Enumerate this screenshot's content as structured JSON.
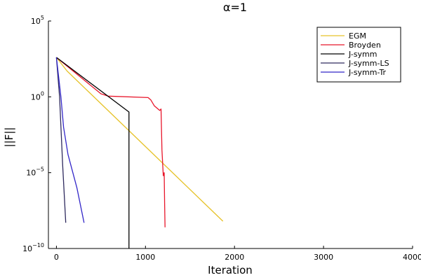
{
  "chart_data": {
    "type": "line",
    "title": "α=1",
    "xlabel": "Iteration",
    "ylabel": "||F||",
    "xlim": [
      -90,
      4000
    ],
    "ylim_log10": [
      -10,
      5
    ],
    "log_y": true,
    "grid": false,
    "legend_position": "top-right",
    "x_ticks": [
      {
        "value": 0,
        "label": "0"
      },
      {
        "value": 1000,
        "label": "1000"
      },
      {
        "value": 2000,
        "label": "2000"
      },
      {
        "value": 3000,
        "label": "3000"
      },
      {
        "value": 4000,
        "label": "4000"
      }
    ],
    "y_ticks": [
      {
        "value": 5,
        "base": "10",
        "exp": "5"
      },
      {
        "value": 0,
        "base": "10",
        "exp": "0"
      },
      {
        "value": -5,
        "base": "10",
        "exp": "−5"
      },
      {
        "value": -10,
        "base": "10",
        "exp": "−10"
      }
    ],
    "series": [
      {
        "name": "EGM",
        "color": "#e6c229",
        "log10_y": true,
        "x": [
          0,
          120,
          1870
        ],
        "y": [
          2.6,
          1.7,
          -8.2
        ]
      },
      {
        "name": "Broyden",
        "color": "#e8162b",
        "log10_y": true,
        "x": [
          0,
          500,
          580,
          1030,
          1060,
          1100,
          1160,
          1175,
          1185,
          1200,
          1210,
          1215,
          1220
        ],
        "y": [
          2.6,
          0.2,
          0.05,
          -0.05,
          -0.2,
          -0.6,
          -0.9,
          -0.8,
          -3.5,
          -5.2,
          -5.0,
          -7.0,
          -8.6
        ]
      },
      {
        "name": "J-symm",
        "color": "#000000",
        "log10_y": true,
        "x": [
          0,
          815,
          815
        ],
        "y": [
          2.6,
          -1.0,
          -10.0
        ]
      },
      {
        "name": "J-symm-LS",
        "color": "#2e2a5e",
        "log10_y": true,
        "x": [
          0,
          35,
          70,
          105
        ],
        "y": [
          2.6,
          0,
          -4.5,
          -8.3
        ]
      },
      {
        "name": "J-symm-Tr",
        "color": "#3226c8",
        "log10_y": true,
        "x": [
          0,
          50,
          80,
          130,
          230,
          310
        ],
        "y": [
          2.6,
          0,
          -2.0,
          -3.8,
          -6.0,
          -8.3
        ]
      }
    ]
  }
}
